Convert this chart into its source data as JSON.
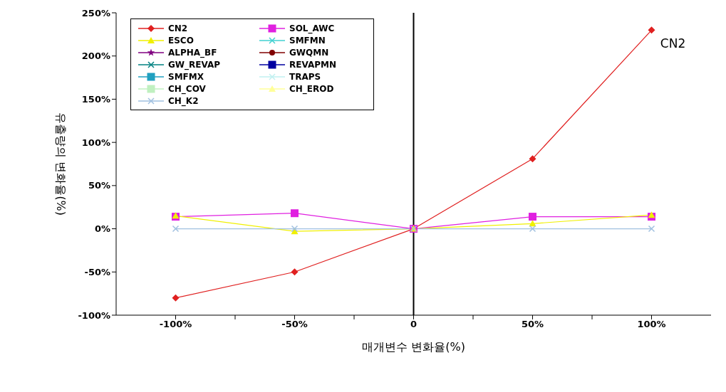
{
  "chart_data": {
    "type": "line",
    "xlabel": "매개변수 변화율(%)",
    "ylabel": "유출량의 변화율(%)",
    "x": [
      -100,
      -50,
      0,
      50,
      100
    ],
    "xlim": [
      -125,
      125
    ],
    "xticks": [
      {
        "value": -100,
        "label": "-100%"
      },
      {
        "value": -75,
        "label": null
      },
      {
        "value": -50,
        "label": "-50%"
      },
      {
        "value": -25,
        "label": null
      },
      {
        "value": 0,
        "label": "0"
      },
      {
        "value": 25,
        "label": null
      },
      {
        "value": 50,
        "label": "50%"
      },
      {
        "value": 75,
        "label": null
      },
      {
        "value": 100,
        "label": "100%"
      }
    ],
    "ylim": [
      -100,
      250
    ],
    "yticks": [
      {
        "value": -100,
        "label": "-100%"
      },
      {
        "value": -50,
        "label": "-50%"
      },
      {
        "value": 0,
        "label": "0%"
      },
      {
        "value": 50,
        "label": "50%"
      },
      {
        "value": 100,
        "label": "100%"
      },
      {
        "value": 150,
        "label": "150%"
      },
      {
        "value": 200,
        "label": "200%"
      },
      {
        "value": 250,
        "label": "250%"
      }
    ],
    "legend": "top left",
    "line_style": "solid",
    "ref_lines": [
      {
        "axis": "x",
        "value": 0,
        "color": "#000000"
      }
    ],
    "annotations": [
      {
        "text": "CN2",
        "x": 100,
        "y": 230
      }
    ],
    "series": [
      {
        "name": "CN2",
        "color": "#e02020",
        "marker": "diamond",
        "values": [
          -80,
          -50,
          0,
          81,
          230
        ]
      },
      {
        "name": "SOL_AWC",
        "color": "#e020e0",
        "marker": "square",
        "values": [
          14,
          18,
          0,
          14,
          14
        ]
      },
      {
        "name": "ESCO",
        "color": "#f0f000",
        "marker": "triangle",
        "values": [
          15,
          -3,
          0,
          6,
          16
        ]
      },
      {
        "name": "SMFMN",
        "color": "#40d0d0",
        "marker": "cross",
        "values": [
          null,
          null,
          null,
          null,
          null
        ]
      },
      {
        "name": "ALPHA_BF",
        "color": "#800080",
        "marker": "star",
        "values": [
          null,
          null,
          null,
          null,
          null
        ]
      },
      {
        "name": "GWQMN",
        "color": "#800000",
        "marker": "circle",
        "values": [
          null,
          null,
          null,
          null,
          null
        ]
      },
      {
        "name": "GW_REVAP",
        "color": "#008080",
        "marker": "cross",
        "values": [
          null,
          null,
          null,
          null,
          null
        ]
      },
      {
        "name": "REVAPMN",
        "color": "#0000a0",
        "marker": "square",
        "values": [
          null,
          null,
          null,
          null,
          null
        ]
      },
      {
        "name": "SMFMX",
        "color": "#20a0c0",
        "marker": "square",
        "values": [
          null,
          null,
          null,
          null,
          null
        ]
      },
      {
        "name": "TRAPS",
        "color": "#c0f0f0",
        "marker": "cross",
        "values": [
          null,
          null,
          null,
          null,
          null
        ]
      },
      {
        "name": "CH_COV",
        "color": "#c0f0c0",
        "marker": "square",
        "values": [
          null,
          null,
          null,
          null,
          null
        ]
      },
      {
        "name": "CH_EROD",
        "color": "#ffff99",
        "marker": "triangle",
        "values": [
          null,
          null,
          null,
          null,
          null
        ]
      },
      {
        "name": "CH_K2",
        "color": "#a0c0e0",
        "marker": "cross",
        "values": [
          0,
          0,
          0,
          0,
          0
        ]
      }
    ]
  }
}
